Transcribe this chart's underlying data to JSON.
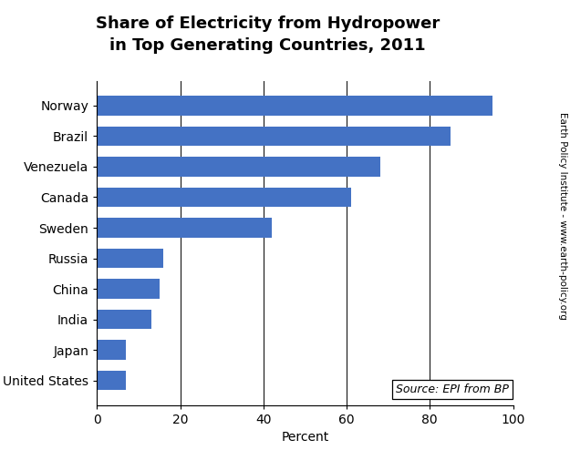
{
  "title": "Share of Electricity from Hydropower\nin Top Generating Countries, 2011",
  "xlabel": "Percent",
  "countries": [
    "Norway",
    "Brazil",
    "Venezuela",
    "Canada",
    "Sweden",
    "Russia",
    "China",
    "India",
    "Japan",
    "United States"
  ],
  "values": [
    95,
    85,
    68,
    61,
    42,
    16,
    15,
    13,
    7,
    7
  ],
  "bar_color": "#4472C4",
  "xlim": [
    0,
    100
  ],
  "xticks": [
    0,
    20,
    40,
    60,
    80,
    100
  ],
  "background_color": "#ffffff",
  "source_text": "Source: EPI from BP",
  "watermark_text": "Earth Policy Institute - www.earth-policy.org",
  "title_fontsize": 13,
  "axis_label_fontsize": 10,
  "tick_fontsize": 10,
  "source_fontsize": 9,
  "watermark_fontsize": 7.5,
  "ytick_fontsize": 10
}
